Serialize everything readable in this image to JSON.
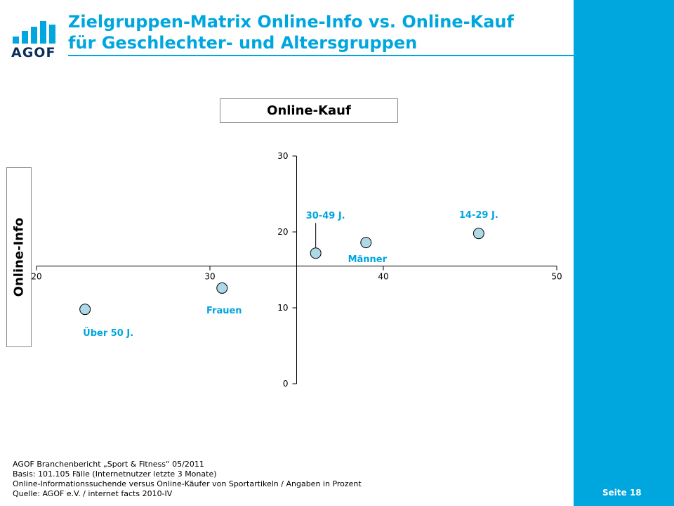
{
  "logo": {
    "text": "AGOF",
    "color": "#00A6DE"
  },
  "header": {
    "title_line1": "Zielgruppen-Matrix Online-Info vs. Online-Kauf",
    "title_line2": "für Geschlechter- und Altersgruppen"
  },
  "labels": {
    "x_box": "Online-Kauf",
    "y_box": "Online-Info"
  },
  "chart_data": {
    "type": "scatter",
    "title": "",
    "xlabel": "Online-Kauf",
    "ylabel": "Online-Info",
    "x_ticks": [
      20,
      30,
      40,
      50
    ],
    "y_ticks": [
      0,
      10,
      20,
      30
    ],
    "xlim": [
      20,
      50
    ],
    "ylim": [
      0,
      30
    ],
    "axis_crossing": {
      "x": 35,
      "y": 15.5
    },
    "grid": false,
    "points": [
      {
        "label": "14-29 J.",
        "x": 45.5,
        "y": 19.8
      },
      {
        "label": "30-49 J.",
        "x": 36.1,
        "y": 17.2
      },
      {
        "label": "Männer",
        "x": 39.0,
        "y": 18.6
      },
      {
        "label": "Frauen",
        "x": 30.7,
        "y": 12.6
      },
      {
        "label": "Über 50 J.",
        "x": 22.8,
        "y": 9.8
      }
    ],
    "marker_color": "#ADD8E6",
    "label_color": "#00A6DE"
  },
  "footer": {
    "line1": "AGOF Branchenbericht „Sport & Fitness“ 05/2011",
    "line2": "Basis: 101.105 Fälle (Internetnutzer letzte 3 Monate)",
    "line3": "Online-Informationssuchende  versus Online-Käufer von Sportartikeln / Angaben in Prozent",
    "line4": "Quelle: AGOF e.V. / internet facts 2010-IV"
  },
  "page": {
    "label": "Seite 18"
  }
}
